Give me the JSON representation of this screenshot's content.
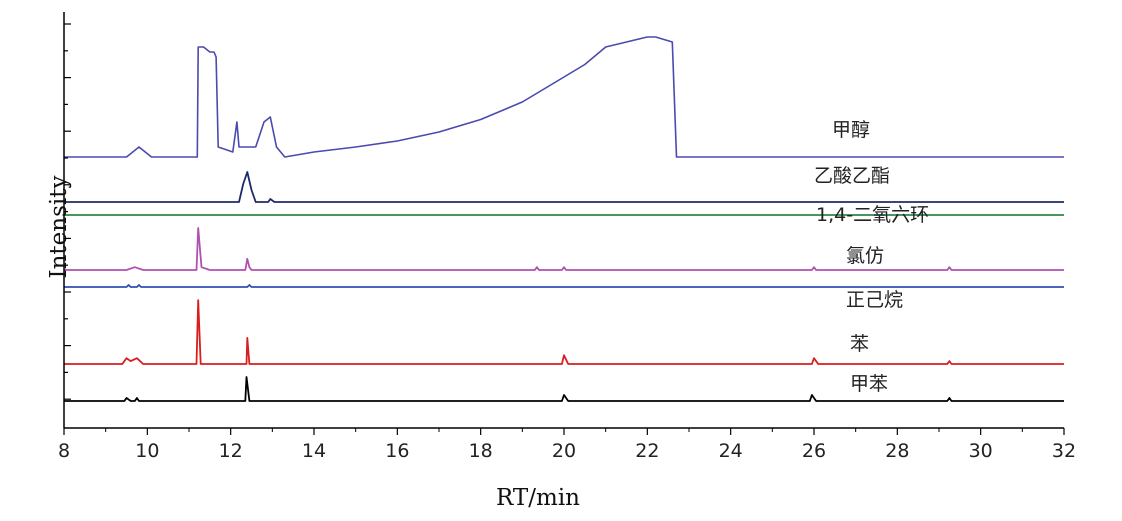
{
  "chart_data": {
    "type": "line",
    "xlabel": "RT/min",
    "ylabel": "Intensity",
    "xlim": [
      8,
      32
    ],
    "xticks": [
      8,
      10,
      12,
      14,
      16,
      18,
      20,
      22,
      24,
      26,
      28,
      30,
      32
    ],
    "y_ticks_labeled": false,
    "grid": false,
    "legend": "labels beside traces",
    "series": [
      {
        "name": "甲醇",
        "color": "#4a4ab0",
        "baseline": 0,
        "points": [
          [
            8,
            0
          ],
          [
            9.5,
            0
          ],
          [
            9.8,
            2
          ],
          [
            10.1,
            0
          ],
          [
            11.2,
            0
          ],
          [
            11.22,
            22
          ],
          [
            11.35,
            22
          ],
          [
            11.5,
            21
          ],
          [
            11.6,
            21
          ],
          [
            11.65,
            20
          ],
          [
            11.7,
            2
          ],
          [
            12.05,
            1
          ],
          [
            12.15,
            7
          ],
          [
            12.2,
            2
          ],
          [
            12.6,
            2
          ],
          [
            12.8,
            7
          ],
          [
            12.95,
            8
          ],
          [
            13.1,
            2
          ],
          [
            13.3,
            0
          ],
          [
            14,
            1
          ],
          [
            15,
            2
          ],
          [
            16,
            3.2
          ],
          [
            17,
            5
          ],
          [
            18,
            7.5
          ],
          [
            19,
            11
          ],
          [
            20,
            16
          ],
          [
            20.5,
            18.5
          ],
          [
            21,
            22
          ],
          [
            21.5,
            23
          ],
          [
            22,
            24
          ],
          [
            22.2,
            24
          ],
          [
            22.6,
            23
          ],
          [
            22.7,
            0
          ],
          [
            26,
            0
          ],
          [
            32,
            0
          ]
        ]
      },
      {
        "name": "乙酸乙酯",
        "color": "#1f2a6b",
        "baseline": 0,
        "points": [
          [
            8,
            0
          ],
          [
            12.2,
            0
          ],
          [
            12.3,
            6
          ],
          [
            12.4,
            10
          ],
          [
            12.5,
            4
          ],
          [
            12.6,
            0
          ],
          [
            12.9,
            0
          ],
          [
            12.95,
            1
          ],
          [
            13.05,
            0
          ],
          [
            32,
            0
          ]
        ]
      },
      {
        "name": "1,4-二氧六环",
        "color": "#2a8a45",
        "baseline": 0,
        "points": [
          [
            8,
            0
          ],
          [
            32,
            0
          ]
        ]
      },
      {
        "name": "氯仿",
        "color": "#b050b0",
        "baseline": 0,
        "points": [
          [
            8,
            0
          ],
          [
            9.5,
            0
          ],
          [
            9.7,
            1
          ],
          [
            9.9,
            0
          ],
          [
            11.18,
            0
          ],
          [
            11.22,
            15
          ],
          [
            11.3,
            1
          ],
          [
            11.5,
            0
          ],
          [
            12.35,
            0
          ],
          [
            12.4,
            4
          ],
          [
            12.45,
            1
          ],
          [
            12.5,
            0
          ],
          [
            19.3,
            0
          ],
          [
            19.35,
            1
          ],
          [
            19.4,
            0
          ],
          [
            19.95,
            0
          ],
          [
            20,
            1
          ],
          [
            20.05,
            0
          ],
          [
            25.95,
            0
          ],
          [
            26,
            1
          ],
          [
            26.05,
            0
          ],
          [
            29.2,
            0
          ],
          [
            29.25,
            1
          ],
          [
            29.3,
            0
          ],
          [
            32,
            0
          ]
        ]
      },
      {
        "name": "正己烷",
        "color": "#3050b0",
        "baseline": 0,
        "points": [
          [
            8,
            0
          ],
          [
            9.5,
            0
          ],
          [
            9.55,
            1
          ],
          [
            9.6,
            0
          ],
          [
            9.75,
            0
          ],
          [
            9.8,
            1
          ],
          [
            9.85,
            0
          ],
          [
            12.4,
            0
          ],
          [
            12.45,
            1
          ],
          [
            12.5,
            0
          ],
          [
            32,
            0
          ]
        ]
      },
      {
        "name": "苯",
        "color": "#d81e1e",
        "baseline": 0,
        "points": [
          [
            8,
            0
          ],
          [
            9.4,
            0
          ],
          [
            9.5,
            2
          ],
          [
            9.6,
            1
          ],
          [
            9.75,
            2
          ],
          [
            9.9,
            0
          ],
          [
            11.18,
            0
          ],
          [
            11.22,
            22
          ],
          [
            11.28,
            0
          ],
          [
            12.38,
            0
          ],
          [
            12.4,
            9
          ],
          [
            12.45,
            0
          ],
          [
            19.95,
            0
          ],
          [
            20,
            3
          ],
          [
            20.1,
            0
          ],
          [
            25.95,
            0
          ],
          [
            26,
            2
          ],
          [
            26.1,
            0
          ],
          [
            29.2,
            0
          ],
          [
            29.25,
            1
          ],
          [
            29.3,
            0
          ],
          [
            32,
            0
          ]
        ]
      },
      {
        "name": "甲苯",
        "color": "#000000",
        "baseline": 0,
        "points": [
          [
            8,
            0
          ],
          [
            9.45,
            0
          ],
          [
            9.5,
            1
          ],
          [
            9.6,
            0
          ],
          [
            9.7,
            0
          ],
          [
            9.75,
            1
          ],
          [
            9.8,
            0
          ],
          [
            12.35,
            0
          ],
          [
            12.38,
            8
          ],
          [
            12.45,
            0
          ],
          [
            19.95,
            0
          ],
          [
            20,
            2
          ],
          [
            20.1,
            0
          ],
          [
            25.9,
            0
          ],
          [
            25.95,
            2
          ],
          [
            26.05,
            0
          ],
          [
            29.2,
            0
          ],
          [
            29.25,
            1
          ],
          [
            29.3,
            0
          ],
          [
            32,
            0
          ]
        ]
      }
    ]
  }
}
